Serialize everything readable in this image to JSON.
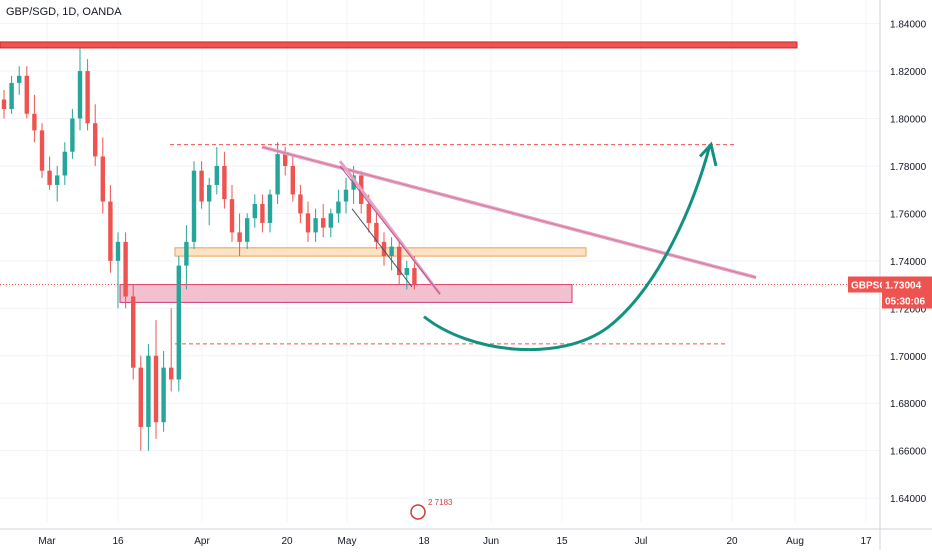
{
  "header": {
    "symbol": "GBP/SGD, 1D, OANDA"
  },
  "price_tag": {
    "symbol": "GBPSGD",
    "price": "1.73004",
    "countdown": "05:30:06"
  },
  "watermark": {
    "text": "2 7183"
  },
  "colors": {
    "up": "#26a69a",
    "down": "#ef5350",
    "resistance": "#ef5350",
    "trend": "#e7a0c0",
    "curve": "#12917f",
    "zone": "#f1b6c7",
    "tag": "#ef5350"
  },
  "chart_data": {
    "type": "candlestick",
    "title": "GBP/SGD, 1D, OANDA",
    "ylim": [
      1.635,
      1.855
    ],
    "y_ticks": [
      "1.64000",
      "1.66000",
      "1.68000",
      "1.70000",
      "1.72000",
      "1.74000",
      "1.76000",
      "1.78000",
      "1.80000",
      "1.82000",
      "1.84000"
    ],
    "x_ticks": [
      "Mar",
      "16",
      "Apr",
      "20",
      "May",
      "18",
      "Jun",
      "15",
      "Jul",
      "20",
      "Aug",
      "17"
    ],
    "last_price": 1.73004,
    "candles": [
      [
        1.808,
        1.812,
        1.8,
        1.804
      ],
      [
        1.804,
        1.818,
        1.802,
        1.815
      ],
      [
        1.815,
        1.822,
        1.81,
        1.818
      ],
      [
        1.818,
        1.822,
        1.8,
        1.802
      ],
      [
        1.802,
        1.81,
        1.79,
        1.795
      ],
      [
        1.795,
        1.798,
        1.775,
        1.778
      ],
      [
        1.778,
        1.784,
        1.77,
        1.772
      ],
      [
        1.772,
        1.78,
        1.765,
        1.776
      ],
      [
        1.776,
        1.79,
        1.772,
        1.786
      ],
      [
        1.786,
        1.804,
        1.783,
        1.8
      ],
      [
        1.8,
        1.83,
        1.795,
        1.82
      ],
      [
        1.82,
        1.825,
        1.795,
        1.798
      ],
      [
        1.798,
        1.806,
        1.78,
        1.784
      ],
      [
        1.784,
        1.792,
        1.76,
        1.765
      ],
      [
        1.765,
        1.772,
        1.735,
        1.74
      ],
      [
        1.74,
        1.752,
        1.72,
        1.748
      ],
      [
        1.748,
        1.752,
        1.72,
        1.725
      ],
      [
        1.725,
        1.73,
        1.69,
        1.695
      ],
      [
        1.695,
        1.7,
        1.66,
        1.67
      ],
      [
        1.67,
        1.705,
        1.66,
        1.7
      ],
      [
        1.7,
        1.715,
        1.665,
        1.672
      ],
      [
        1.672,
        1.702,
        1.668,
        1.695
      ],
      [
        1.695,
        1.72,
        1.685,
        1.69
      ],
      [
        1.69,
        1.742,
        1.685,
        1.738
      ],
      [
        1.738,
        1.755,
        1.728,
        1.748
      ],
      [
        1.748,
        1.782,
        1.745,
        1.778
      ],
      [
        1.778,
        1.782,
        1.762,
        1.765
      ],
      [
        1.765,
        1.775,
        1.755,
        1.772
      ],
      [
        1.772,
        1.788,
        1.768,
        1.78
      ],
      [
        1.78,
        1.786,
        1.762,
        1.766
      ],
      [
        1.766,
        1.772,
        1.748,
        1.752
      ],
      [
        1.752,
        1.76,
        1.742,
        1.748
      ],
      [
        1.748,
        1.76,
        1.745,
        1.758
      ],
      [
        1.758,
        1.768,
        1.754,
        1.764
      ],
      [
        1.764,
        1.768,
        1.752,
        1.756
      ],
      [
        1.756,
        1.77,
        1.752,
        1.768
      ],
      [
        1.768,
        1.79,
        1.764,
        1.785
      ],
      [
        1.785,
        1.788,
        1.776,
        1.78
      ],
      [
        1.78,
        1.784,
        1.765,
        1.768
      ],
      [
        1.768,
        1.772,
        1.756,
        1.76
      ],
      [
        1.76,
        1.765,
        1.748,
        1.752
      ],
      [
        1.752,
        1.762,
        1.748,
        1.758
      ],
      [
        1.758,
        1.764,
        1.75,
        1.754
      ],
      [
        1.754,
        1.762,
        1.75,
        1.76
      ],
      [
        1.76,
        1.77,
        1.756,
        1.765
      ],
      [
        1.765,
        1.775,
        1.76,
        1.77
      ],
      [
        1.77,
        1.78,
        1.764,
        1.776
      ],
      [
        1.776,
        1.778,
        1.76,
        1.764
      ],
      [
        1.764,
        1.768,
        1.752,
        1.756
      ],
      [
        1.756,
        1.76,
        1.745,
        1.748
      ],
      [
        1.748,
        1.752,
        1.738,
        1.742
      ],
      [
        1.742,
        1.75,
        1.736,
        1.746
      ],
      [
        1.746,
        1.748,
        1.73,
        1.734
      ],
      [
        1.734,
        1.74,
        1.728,
        1.737
      ],
      [
        1.737,
        1.742,
        1.728,
        1.73
      ]
    ]
  }
}
